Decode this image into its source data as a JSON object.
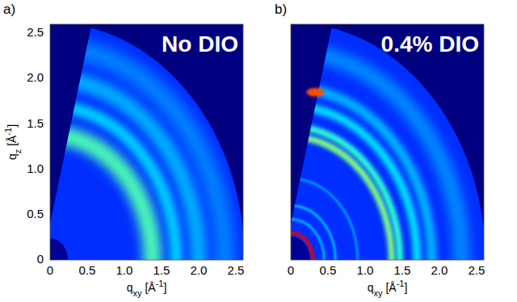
{
  "chart_data": [
    {
      "type": "scattering_pattern",
      "panel": "a)",
      "title": "No DIO",
      "x_label": [
        "q",
        "xy",
        " [Å",
        "-1",
        "]"
      ],
      "y_label": [
        "q",
        "z",
        " [Å",
        "-1",
        "]"
      ],
      "xlim": [
        0,
        2.6
      ],
      "ylim": [
        0,
        2.6
      ],
      "xticks": [
        0,
        0.5,
        {
          "value": 1,
          "label": "1.0"
        },
        1.5,
        {
          "value": 2,
          "label": "2.0"
        },
        2.5
      ],
      "yticks": [
        0,
        0.5,
        {
          "value": 1,
          "label": "1.0"
        },
        1.5,
        {
          "value": 2,
          "label": "2.0"
        },
        2.5
      ],
      "q_max": 2.62,
      "detector_edge": [
        [
          0,
          0.4
        ],
        [
          0.55,
          2.56
        ]
      ],
      "background_intensity": 0.17,
      "beamstop_radius": 0.24,
      "rings": [
        1.38,
        1.7,
        2.0,
        2.35
      ],
      "ring_intensity": [
        0.45,
        0.33,
        0.3,
        0.25
      ],
      "ring_width": [
        0.22,
        0.15,
        0.2,
        0.25
      ]
    },
    {
      "type": "scattering_pattern",
      "panel": "b)",
      "title": "0.4% DIO",
      "x_label": [
        "q",
        "xy",
        " [Å",
        "-1",
        "]"
      ],
      "xlim": [
        0,
        2.6
      ],
      "ylim": [
        0,
        2.6
      ],
      "xticks": [
        0,
        0.5,
        {
          "value": 1,
          "label": "1.0"
        },
        1.5,
        {
          "value": 2,
          "label": "2.0"
        },
        2.5
      ],
      "yticks": [
        0,
        0.5,
        {
          "value": 1,
          "label": "1.0"
        },
        1.5,
        {
          "value": 2,
          "label": "2.0"
        },
        2.5
      ],
      "tick_labels": "x",
      "q_max": 2.62,
      "detector_edge": [
        [
          0,
          0.4
        ],
        [
          0.55,
          2.56
        ]
      ],
      "background_intensity": 0.17,
      "beamstop_radius": 0.26,
      "rings": [
        0.3,
        0.45,
        0.6,
        0.9,
        1.36,
        1.47,
        1.7,
        1.9,
        2.3
      ],
      "ring_intensity": [
        0.9,
        0.3,
        0.3,
        0.27,
        0.5,
        0.42,
        0.35,
        0.3,
        0.26
      ],
      "ring_width": [
        0.04,
        0.03,
        0.03,
        0.03,
        0.08,
        0.08,
        0.1,
        0.12,
        0.2
      ],
      "spots": [
        {
          "qxy": 0.33,
          "qz": 1.85,
          "intensity": 0.8,
          "size": 0.12
        }
      ]
    }
  ]
}
